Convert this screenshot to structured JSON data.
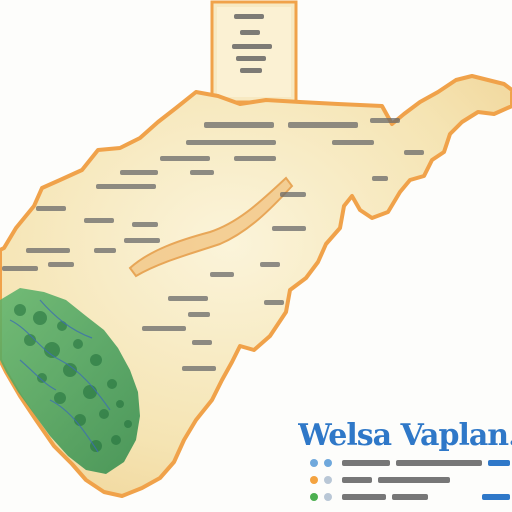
{
  "map": {
    "title": "Welsa Vaplan.",
    "colors": {
      "land": "#f6e6b8",
      "land_light": "#fbf3d6",
      "border": "#f0a24a",
      "border_dark": "#d9772a",
      "forest": "#3e9c58",
      "forest_dark": "#1f6e3a",
      "water": "#3d6fb0",
      "title": "#2f78c8",
      "label": "#5b5b5b"
    },
    "legend": [
      {
        "marker": "blue-dot",
        "color": "#6fa8dc"
      },
      {
        "marker": "orange-dot",
        "color": "#f4a340"
      },
      {
        "marker": "green-dot",
        "color": "#4caf50"
      }
    ]
  }
}
